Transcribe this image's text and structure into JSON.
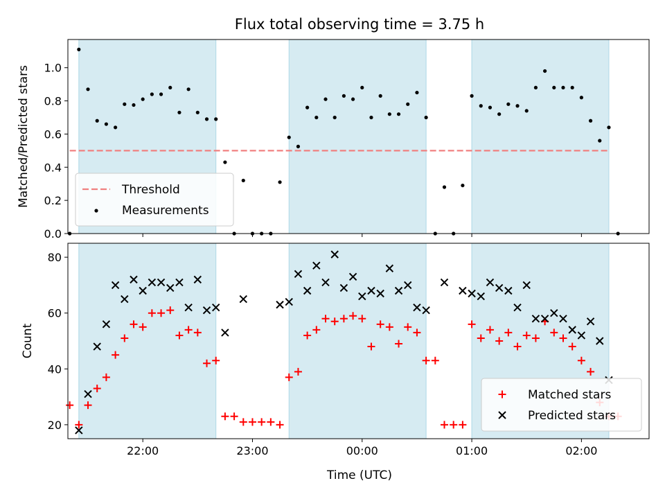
{
  "chart_data": [
    {
      "type": "scatter",
      "title": "Flux total observing time = 3.75 h",
      "ylabel": "Matched/Predicted stars",
      "xlim": [
        "21:19",
        "02:37"
      ],
      "ylim": [
        0,
        1.17
      ],
      "yticks": [
        "0.0",
        "0.2",
        "0.4",
        "0.6",
        "0.8",
        "1.0"
      ],
      "grid": false,
      "legend_position": "lower left",
      "shaded_intervals": [
        [
          "21:25",
          "22:40"
        ],
        [
          "23:20",
          "00:35"
        ],
        [
          "01:00",
          "02:15"
        ]
      ],
      "shade_color": "#add8e6",
      "threshold": {
        "name": "Threshold",
        "value": 0.5,
        "x_range": [
          "21:20",
          "02:15"
        ],
        "color": "#f08080",
        "style": "dashed"
      },
      "series": [
        {
          "name": "Measurements",
          "color": "#000000",
          "marker": "dot",
          "points": [
            [
              "21:20",
              0.0
            ],
            [
              "21:25",
              1.11
            ],
            [
              "21:30",
              0.87
            ],
            [
              "21:35",
              0.68
            ],
            [
              "21:40",
              0.66
            ],
            [
              "21:45",
              0.64
            ],
            [
              "21:50",
              0.78
            ],
            [
              "21:55",
              0.775
            ],
            [
              "22:00",
              0.81
            ],
            [
              "22:05",
              0.84
            ],
            [
              "22:10",
              0.84
            ],
            [
              "22:15",
              0.88
            ],
            [
              "22:20",
              0.73
            ],
            [
              "22:25",
              0.87
            ],
            [
              "22:30",
              0.73
            ],
            [
              "22:35",
              0.69
            ],
            [
              "22:40",
              0.69
            ],
            [
              "22:45",
              0.43
            ],
            [
              "22:50",
              0.0
            ],
            [
              "22:55",
              0.32
            ],
            [
              "23:00",
              0.0
            ],
            [
              "23:05",
              0.0
            ],
            [
              "23:10",
              0.0
            ],
            [
              "23:15",
              0.31
            ],
            [
              "23:20",
              0.58
            ],
            [
              "23:25",
              0.525
            ],
            [
              "23:30",
              0.76
            ],
            [
              "23:35",
              0.7
            ],
            [
              "23:40",
              0.81
            ],
            [
              "23:45",
              0.7
            ],
            [
              "23:50",
              0.83
            ],
            [
              "23:55",
              0.81
            ],
            [
              "00:00",
              0.88
            ],
            [
              "00:05",
              0.7
            ],
            [
              "00:10",
              0.83
            ],
            [
              "00:15",
              0.72
            ],
            [
              "00:20",
              0.72
            ],
            [
              "00:25",
              0.78
            ],
            [
              "00:30",
              0.85
            ],
            [
              "00:35",
              0.7
            ],
            [
              "00:40",
              0.0
            ],
            [
              "00:45",
              0.28
            ],
            [
              "00:50",
              0.0
            ],
            [
              "00:55",
              0.29
            ],
            [
              "01:00",
              0.83
            ],
            [
              "01:05",
              0.77
            ],
            [
              "01:10",
              0.76
            ],
            [
              "01:15",
              0.72
            ],
            [
              "01:20",
              0.78
            ],
            [
              "01:25",
              0.77
            ],
            [
              "01:30",
              0.74
            ],
            [
              "01:35",
              0.88
            ],
            [
              "01:40",
              0.98
            ],
            [
              "01:45",
              0.88
            ],
            [
              "01:50",
              0.88
            ],
            [
              "01:55",
              0.88
            ],
            [
              "02:00",
              0.82
            ],
            [
              "02:05",
              0.68
            ],
            [
              "02:10",
              0.56
            ],
            [
              "02:15",
              0.64
            ],
            [
              "02:20",
              0.0
            ]
          ]
        }
      ]
    },
    {
      "type": "scatter",
      "xlabel": "Time (UTC)",
      "ylabel": "Count",
      "xlim": [
        "21:19",
        "02:37"
      ],
      "ylim": [
        15,
        85
      ],
      "yticks": [
        "20",
        "40",
        "60",
        "80"
      ],
      "xticks": [
        "22:00",
        "23:00",
        "00:00",
        "01:00",
        "02:00"
      ],
      "grid": false,
      "legend_position": "lower right",
      "shaded_intervals": [
        [
          "21:25",
          "22:40"
        ],
        [
          "23:20",
          "00:35"
        ],
        [
          "01:00",
          "02:15"
        ]
      ],
      "shade_color": "#add8e6",
      "series": [
        {
          "name": "Matched stars",
          "color": "#ff0000",
          "marker": "plus",
          "points": [
            [
              "21:20",
              27
            ],
            [
              "21:25",
              20
            ],
            [
              "21:30",
              27
            ],
            [
              "21:35",
              33
            ],
            [
              "21:40",
              37
            ],
            [
              "21:45",
              45
            ],
            [
              "21:50",
              51
            ],
            [
              "21:55",
              56
            ],
            [
              "22:00",
              55
            ],
            [
              "22:05",
              60
            ],
            [
              "22:10",
              60
            ],
            [
              "22:15",
              61
            ],
            [
              "22:20",
              52
            ],
            [
              "22:25",
              54
            ],
            [
              "22:30",
              53
            ],
            [
              "22:35",
              42
            ],
            [
              "22:40",
              43
            ],
            [
              "22:45",
              23
            ],
            [
              "22:50",
              23
            ],
            [
              "22:55",
              21
            ],
            [
              "23:00",
              21
            ],
            [
              "23:05",
              21
            ],
            [
              "23:10",
              21
            ],
            [
              "23:15",
              20
            ],
            [
              "23:20",
              37
            ],
            [
              "23:25",
              39
            ],
            [
              "23:30",
              52
            ],
            [
              "23:35",
              54
            ],
            [
              "23:40",
              58
            ],
            [
              "23:45",
              57
            ],
            [
              "23:50",
              58
            ],
            [
              "23:55",
              59
            ],
            [
              "00:00",
              58
            ],
            [
              "00:05",
              48
            ],
            [
              "00:10",
              56
            ],
            [
              "00:15",
              55
            ],
            [
              "00:20",
              49
            ],
            [
              "00:25",
              55
            ],
            [
              "00:30",
              53
            ],
            [
              "00:35",
              43
            ],
            [
              "00:40",
              43
            ],
            [
              "00:45",
              20
            ],
            [
              "00:50",
              20
            ],
            [
              "00:55",
              20
            ],
            [
              "01:00",
              56
            ],
            [
              "01:05",
              51
            ],
            [
              "01:10",
              54
            ],
            [
              "01:15",
              50
            ],
            [
              "01:20",
              53
            ],
            [
              "01:25",
              48
            ],
            [
              "01:30",
              52
            ],
            [
              "01:35",
              51
            ],
            [
              "01:40",
              57
            ],
            [
              "01:45",
              53
            ],
            [
              "01:50",
              51
            ],
            [
              "01:55",
              48
            ],
            [
              "02:00",
              43
            ],
            [
              "02:05",
              39
            ],
            [
              "02:10",
              28
            ],
            [
              "02:15",
              23
            ],
            [
              "02:20",
              23
            ]
          ]
        },
        {
          "name": "Predicted stars",
          "color": "#000000",
          "marker": "x",
          "points": [
            [
              "21:25",
              18
            ],
            [
              "21:30",
              31
            ],
            [
              "21:35",
              48
            ],
            [
              "21:40",
              56
            ],
            [
              "21:45",
              70
            ],
            [
              "21:50",
              65
            ],
            [
              "21:55",
              72
            ],
            [
              "22:00",
              68
            ],
            [
              "22:05",
              71
            ],
            [
              "22:10",
              71
            ],
            [
              "22:15",
              69
            ],
            [
              "22:20",
              71
            ],
            [
              "22:25",
              62
            ],
            [
              "22:30",
              72
            ],
            [
              "22:35",
              61
            ],
            [
              "22:40",
              62
            ],
            [
              "22:45",
              53
            ],
            [
              "22:55",
              65
            ],
            [
              "23:15",
              63
            ],
            [
              "23:20",
              64
            ],
            [
              "23:25",
              74
            ],
            [
              "23:30",
              68
            ],
            [
              "23:35",
              77
            ],
            [
              "23:40",
              71
            ],
            [
              "23:45",
              81
            ],
            [
              "23:50",
              69
            ],
            [
              "23:55",
              73
            ],
            [
              "00:00",
              66
            ],
            [
              "00:05",
              68
            ],
            [
              "00:10",
              67
            ],
            [
              "00:15",
              76
            ],
            [
              "00:20",
              68
            ],
            [
              "00:25",
              70
            ],
            [
              "00:30",
              62
            ],
            [
              "00:35",
              61
            ],
            [
              "00:45",
              71
            ],
            [
              "00:55",
              68
            ],
            [
              "01:00",
              67
            ],
            [
              "01:05",
              66
            ],
            [
              "01:10",
              71
            ],
            [
              "01:15",
              69
            ],
            [
              "01:20",
              68
            ],
            [
              "01:25",
              62
            ],
            [
              "01:30",
              70
            ],
            [
              "01:35",
              58
            ],
            [
              "01:40",
              58
            ],
            [
              "01:45",
              60
            ],
            [
              "01:50",
              58
            ],
            [
              "01:55",
              54
            ],
            [
              "02:00",
              52
            ],
            [
              "02:05",
              57
            ],
            [
              "02:10",
              50
            ],
            [
              "02:15",
              36
            ]
          ]
        }
      ]
    }
  ]
}
